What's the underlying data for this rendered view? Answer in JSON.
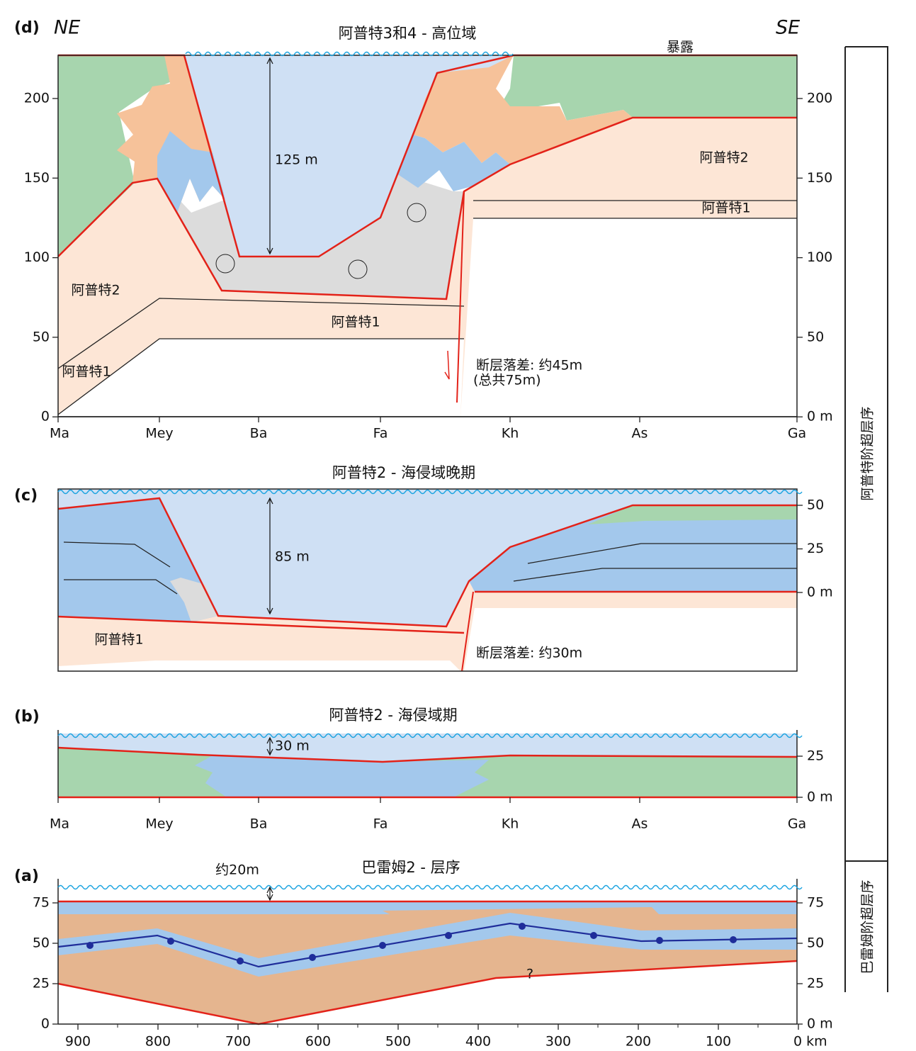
{
  "panels": {
    "d": {
      "label": "(d)",
      "left_dir": "NE",
      "right_dir": "SE",
      "title": "阿普特3和4 - 高位域",
      "exposure": "暴露",
      "depth": "125 m",
      "apt2_right": "阿普特2",
      "apt1_right": "阿普特1",
      "apt2_left": "阿普特2",
      "apt1_mid": "阿普特1",
      "apt1_left": "阿普特1",
      "fault": "断层落差: 约45m",
      "fault_total": "(总共75m)",
      "left_ticks": [
        "200",
        "150",
        "100",
        "50",
        "0"
      ],
      "right_ticks": [
        "200",
        "150",
        "100",
        "50",
        "0 m"
      ],
      "locations": [
        "Ma",
        "Mey",
        "Ba",
        "Fa",
        "Kh",
        "As",
        "Ga"
      ]
    },
    "c": {
      "label": "(c)",
      "title": "阿普特2 - 海侵域晚期",
      "depth": "85 m",
      "apt1": "阿普特1",
      "fault": "断层落差: 约30m",
      "right_ticks": [
        "50",
        "25",
        "0 m"
      ]
    },
    "b": {
      "label": "(b)",
      "title": "阿普特2 - 海侵域期",
      "depth": "30 m",
      "right_ticks": [
        "25",
        "0 m"
      ],
      "locations": [
        "Ma",
        "Mey",
        "Ba",
        "Fa",
        "Kh",
        "As",
        "Ga"
      ]
    },
    "a": {
      "label": "(a)",
      "title": "巴雷姆2 - 层序",
      "depth": "约20m",
      "unknown": "?",
      "left_ticks": [
        "75",
        "50",
        "25",
        "0"
      ],
      "right_ticks": [
        "75",
        "50",
        "25",
        "0 m"
      ],
      "km_ticks": [
        "900",
        "800",
        "700",
        "600",
        "500",
        "400",
        "300",
        "200",
        "100",
        "0 km"
      ]
    }
  },
  "sidebar": {
    "upper": "阿普特阶超层序",
    "lower": "巴雷姆阶超层序"
  }
}
